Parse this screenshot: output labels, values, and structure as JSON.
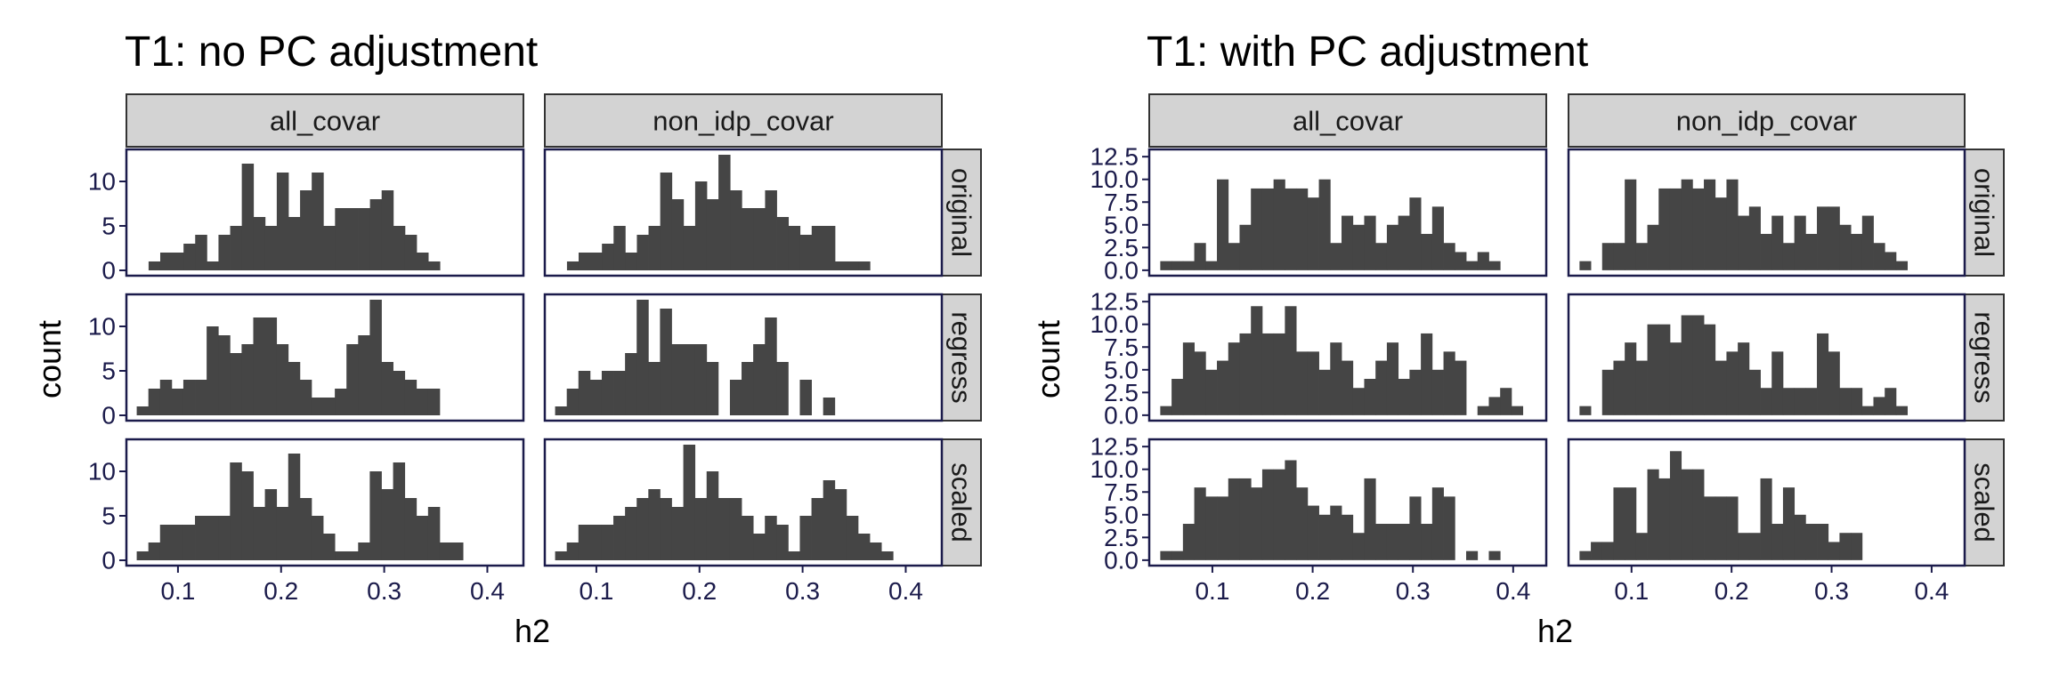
{
  "colors": {
    "bar": "#454545",
    "strip_fill": "#d3d3d3",
    "strip_border": "#333333",
    "panel_border": "#1b1b4b",
    "tick_text": "#1b1b4b"
  },
  "chart_data": [
    {
      "type": "bar",
      "title": "T1: no PC adjustment",
      "xlabel": "h2",
      "ylabel": "count",
      "xlim": [
        0.05,
        0.435
      ],
      "ylim": [
        -0.6,
        13.6
      ],
      "xticks": [
        0.1,
        0.2,
        0.3,
        0.4
      ],
      "xtick_labels": [
        "0.1",
        "0.2",
        "0.3",
        "0.4"
      ],
      "yticks": [
        0,
        5,
        10
      ],
      "ytick_labels": [
        "0",
        "5",
        "10"
      ],
      "columns": [
        "all_covar",
        "non_idp_covar"
      ],
      "rows": [
        "original",
        "regress",
        "scaled"
      ],
      "bin_width": 0.0113,
      "panels": [
        {
          "row": "original",
          "col": "all_covar",
          "x0": 0.0715,
          "counts": [
            1,
            2,
            2,
            3,
            4,
            1,
            4,
            5,
            12,
            6,
            5,
            11,
            6,
            9,
            11,
            5,
            7,
            7,
            7,
            8,
            9,
            5,
            4,
            2,
            1
          ]
        },
        {
          "row": "original",
          "col": "non_idp_covar",
          "x0": 0.0715,
          "counts": [
            1,
            2,
            2,
            3,
            5,
            2,
            4,
            5,
            11,
            8,
            5,
            10,
            8,
            13,
            9,
            7,
            7,
            9,
            6,
            5,
            4,
            5,
            5,
            1,
            1,
            1
          ]
        },
        {
          "row": "regress",
          "col": "all_covar",
          "x0": 0.06,
          "counts": [
            1,
            3,
            4,
            3,
            4,
            4,
            10,
            9,
            7,
            8,
            11,
            11,
            8,
            6,
            4,
            2,
            2,
            3,
            8,
            9,
            13,
            6,
            5,
            4,
            3,
            3
          ]
        },
        {
          "row": "regress",
          "col": "non_idp_covar",
          "x0": 0.06,
          "counts": [
            1,
            3,
            5,
            4,
            5,
            5,
            7,
            13,
            6,
            12,
            8,
            8,
            8,
            6,
            0,
            4,
            6,
            8,
            11,
            6,
            0,
            4,
            0,
            2
          ]
        },
        {
          "row": "scaled",
          "col": "all_covar",
          "x0": 0.06,
          "counts": [
            1,
            2,
            4,
            4,
            4,
            5,
            5,
            5,
            11,
            10,
            6,
            8,
            6,
            12,
            7,
            5,
            3,
            1,
            1,
            2,
            10,
            8,
            11,
            7,
            5,
            6,
            2,
            2
          ]
        },
        {
          "row": "scaled",
          "col": "non_idp_covar",
          "x0": 0.06,
          "counts": [
            1,
            2,
            4,
            4,
            4,
            5,
            6,
            7,
            8,
            7,
            6,
            13,
            7,
            10,
            7,
            7,
            5,
            3,
            5,
            4,
            1,
            5,
            7,
            9,
            8,
            5,
            3,
            2,
            1
          ]
        }
      ]
    },
    {
      "type": "bar",
      "title": "T1: with PC adjustment",
      "xlabel": "h2",
      "ylabel": "count",
      "xlim": [
        0.037,
        0.433
      ],
      "ylim": [
        -0.6,
        13.3
      ],
      "xticks": [
        0.1,
        0.2,
        0.3,
        0.4
      ],
      "xtick_labels": [
        "0.1",
        "0.2",
        "0.3",
        "0.4"
      ],
      "yticks": [
        0,
        2.5,
        5,
        7.5,
        10,
        12.5
      ],
      "ytick_labels": [
        "0.0",
        "2.5",
        "5.0",
        "7.5",
        "10.0",
        "12.5"
      ],
      "columns": [
        "all_covar",
        "non_idp_covar"
      ],
      "rows": [
        "original",
        "regress",
        "scaled"
      ],
      "bin_width": 0.0113,
      "panels": [
        {
          "row": "original",
          "col": "all_covar",
          "x0": 0.048,
          "counts": [
            1,
            1,
            1,
            3,
            1,
            10,
            3,
            5,
            9,
            9,
            10,
            9,
            9,
            8,
            10,
            3,
            6,
            5,
            6,
            3,
            5,
            6,
            8,
            4,
            7,
            3,
            2,
            1,
            2,
            1
          ]
        },
        {
          "row": "original",
          "col": "non_idp_covar",
          "x0": 0.048,
          "counts": [
            1,
            0,
            3,
            3,
            10,
            3,
            5,
            9,
            9,
            10,
            9,
            10,
            8,
            10,
            6,
            7,
            4,
            6,
            3,
            6,
            4,
            7,
            7,
            5,
            4,
            6,
            3,
            2,
            1
          ]
        },
        {
          "row": "regress",
          "col": "all_covar",
          "x0": 0.048,
          "counts": [
            1,
            4,
            8,
            7,
            5,
            6,
            8,
            9,
            12,
            9,
            9,
            12,
            7,
            7,
            5,
            8,
            6,
            3,
            4,
            6,
            8,
            4,
            5,
            9,
            5,
            7,
            6,
            0,
            1,
            2,
            3,
            1
          ]
        },
        {
          "row": "regress",
          "col": "non_idp_covar",
          "x0": 0.048,
          "counts": [
            1,
            0,
            5,
            6,
            8,
            6,
            10,
            10,
            8,
            11,
            11,
            10,
            6,
            7,
            8,
            5,
            3,
            7,
            3,
            3,
            3,
            9,
            7,
            3,
            3,
            1,
            2,
            3,
            1
          ]
        },
        {
          "row": "scaled",
          "col": "all_covar",
          "x0": 0.048,
          "counts": [
            1,
            1,
            4,
            8,
            7,
            7,
            9,
            9,
            8,
            10,
            10,
            11,
            8,
            6,
            5,
            6,
            5,
            3,
            9,
            4,
            4,
            4,
            7,
            4,
            8,
            7,
            0,
            1,
            0,
            1
          ]
        },
        {
          "row": "scaled",
          "col": "non_idp_covar",
          "x0": 0.048,
          "counts": [
            1,
            2,
            2,
            8,
            8,
            3,
            10,
            9,
            12,
            10,
            10,
            7,
            7,
            7,
            3,
            3,
            9,
            4,
            8,
            5,
            4,
            4,
            2,
            3,
            3
          ]
        }
      ]
    }
  ]
}
